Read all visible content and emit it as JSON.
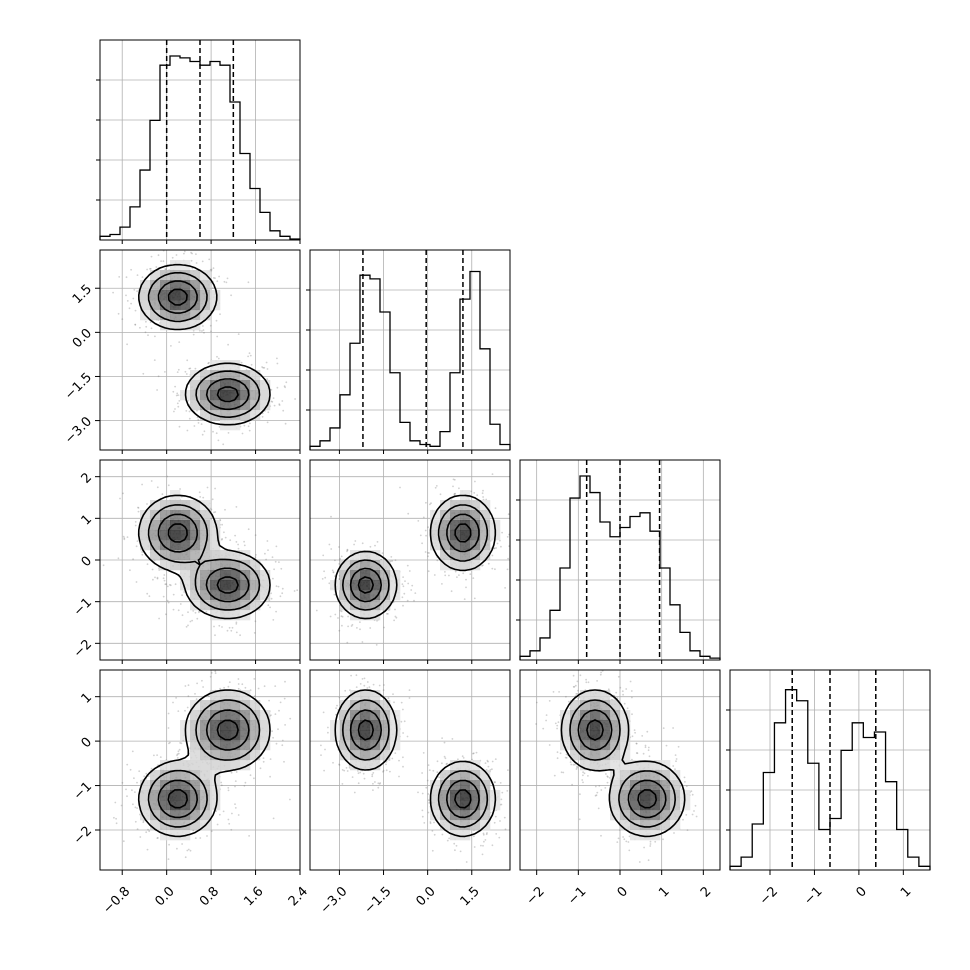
{
  "chart_data": {
    "type": "corner",
    "grid": true,
    "params": [
      {
        "range": [
          -1.2,
          2.4
        ],
        "ticks": [
          -0.8,
          0.0,
          0.8,
          1.6,
          2.4
        ],
        "tick_labels": [
          "−0.8",
          "0.0",
          "0.8",
          "1.6",
          "2.4"
        ],
        "quantiles": [
          0.0,
          0.6,
          1.2
        ]
      },
      {
        "range": [
          -4.0,
          2.8
        ],
        "ticks": [
          -3.0,
          -1.5,
          0.0,
          1.5
        ],
        "tick_labels": [
          "−3.0",
          "−1.5",
          "0.0",
          "1.5"
        ],
        "quantiles": [
          -2.2,
          -0.05,
          1.2
        ]
      },
      {
        "range": [
          -2.4,
          2.4
        ],
        "ticks": [
          -2,
          -1,
          0,
          1,
          2
        ],
        "tick_labels": [
          "−2",
          "−1",
          "0",
          "1",
          "2"
        ],
        "quantiles": [
          -0.8,
          0.0,
          0.95
        ]
      },
      {
        "range": [
          -2.9,
          1.6
        ],
        "ticks": [
          -2,
          -1,
          0,
          1
        ],
        "tick_labels": [
          "−2",
          "−1",
          "0",
          "1"
        ],
        "quantiles": [
          -1.5,
          -0.65,
          0.38
        ]
      }
    ],
    "histograms": [
      [
        0.02,
        0.03,
        0.07,
        0.18,
        0.38,
        0.65,
        0.95,
        1.0,
        0.99,
        0.97,
        0.95,
        0.97,
        0.95,
        0.75,
        0.47,
        0.28,
        0.15,
        0.05,
        0.02,
        0.005
      ],
      [
        0.02,
        0.05,
        0.12,
        0.3,
        0.58,
        0.95,
        0.93,
        0.75,
        0.42,
        0.15,
        0.05,
        0.03,
        0.02,
        0.1,
        0.42,
        0.82,
        0.97,
        0.55,
        0.14,
        0.03
      ],
      [
        0.02,
        0.05,
        0.12,
        0.27,
        0.5,
        0.88,
        1.0,
        0.91,
        0.75,
        0.67,
        0.72,
        0.78,
        0.8,
        0.7,
        0.5,
        0.3,
        0.15,
        0.05,
        0.02,
        0.01
      ],
      [
        0.02,
        0.07,
        0.25,
        0.53,
        0.8,
        0.98,
        0.92,
        0.58,
        0.22,
        0.28,
        0.65,
        0.8,
        0.72,
        0.75,
        0.48,
        0.22,
        0.07,
        0.02
      ]
    ],
    "modes": [
      {
        "mu": [
          0.2,
          1.2,
          0.65,
          -1.3
        ],
        "sigma": [
          0.35,
          0.55,
          0.45,
          0.42
        ]
      },
      {
        "mu": [
          1.1,
          -2.1,
          -0.6,
          0.25
        ],
        "sigma": [
          0.38,
          0.52,
          0.4,
          0.45
        ]
      }
    ],
    "contour_levels": [
      0.882,
      0.607,
      0.325,
      0.135
    ],
    "colors": {
      "line": "#000000",
      "points": "#7a7a7a",
      "grid": "#b0b0b0",
      "density": "#000000"
    }
  }
}
